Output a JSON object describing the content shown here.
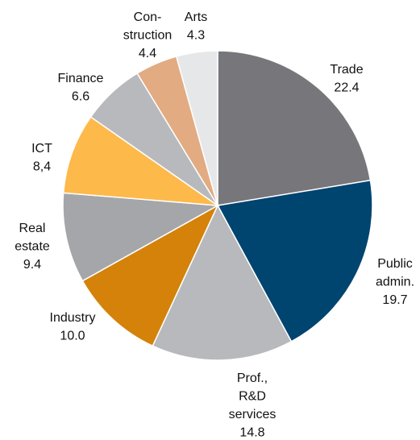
{
  "chart_data": {
    "type": "pie",
    "categories": [
      "Trade",
      "Public\nadmin.",
      "Prof.,\nR&D\nservices",
      "Industry",
      "Real\nestate",
      "ICT",
      "Finance",
      "Con-\nstruction",
      "Arts"
    ],
    "values": [
      22.4,
      19.7,
      14.8,
      10.0,
      9.4,
      8.4,
      6.6,
      4.4,
      4.3
    ],
    "value_labels": [
      "22.4",
      "19.7",
      "14.8",
      "10.0",
      "9.4",
      "8,4",
      "6.6",
      "4.4",
      "4.3"
    ],
    "colors": [
      "#77767b",
      "#004470",
      "#b8b9bc",
      "#d4820a",
      "#a5a6a9",
      "#fdb94a",
      "#b8b9bc",
      "#e2ab82",
      "#e6e7e9"
    ]
  }
}
